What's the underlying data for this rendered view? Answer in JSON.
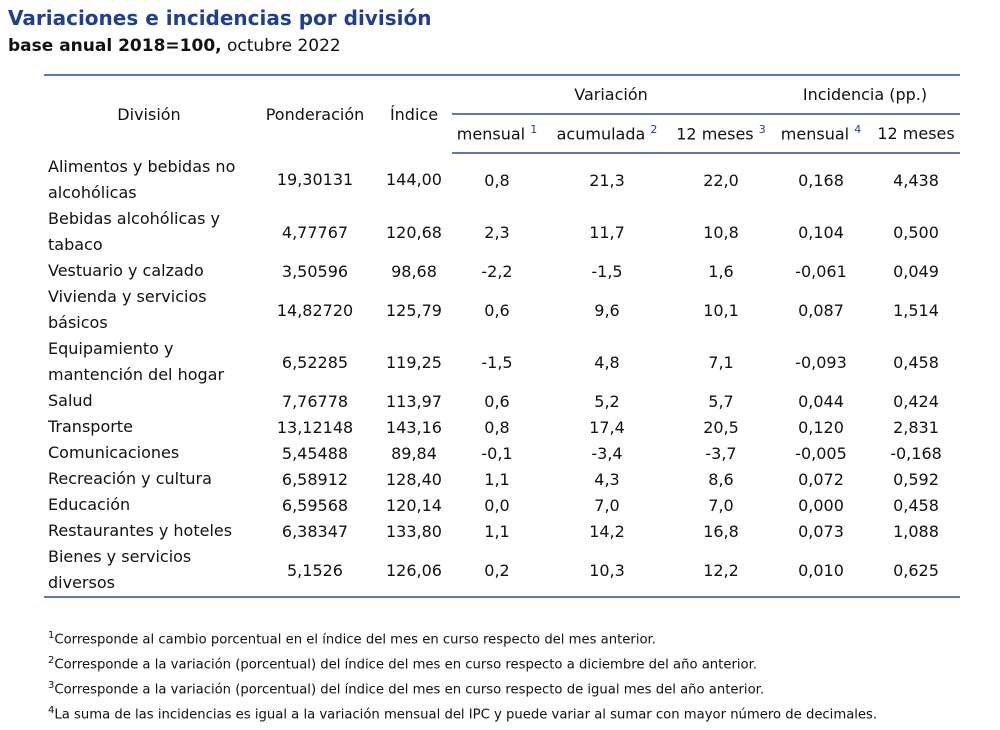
{
  "title": "Variaciones e incidencias por división",
  "subtitle": {
    "bold": "base anual 2018=100,",
    "normal": "octubre 2022"
  },
  "headers": {
    "division": "División",
    "ponderacion": "Ponderación",
    "indice": "Índice",
    "variacion": "Variación",
    "incidencia": "Incidencia (pp.)",
    "var_mensual": "mensual",
    "var_mensual_sup": "1",
    "var_acumulada": "acumulada",
    "var_acumulada_sup": "2",
    "var_12meses": "12 meses",
    "var_12meses_sup": "3",
    "inc_mensual": "mensual",
    "inc_mensual_sup": "4",
    "inc_12meses": "12 meses"
  },
  "rows": [
    {
      "name": "Alimentos y bebidas no alcohólicas",
      "ponderacion": "19,30131",
      "indice": "144,00",
      "var_mensual": "0,8",
      "var_acumulada": "21,3",
      "var_12meses": "22,0",
      "inc_mensual": "0,168",
      "inc_12meses": "4,438"
    },
    {
      "name": "Bebidas alcohólicas y tabaco",
      "ponderacion": "4,77767",
      "indice": "120,68",
      "var_mensual": "2,3",
      "var_acumulada": "11,7",
      "var_12meses": "10,8",
      "inc_mensual": "0,104",
      "inc_12meses": "0,500"
    },
    {
      "name": "Vestuario y calzado",
      "ponderacion": "3,50596",
      "indice": "98,68",
      "var_mensual": "-2,2",
      "var_acumulada": "-1,5",
      "var_12meses": "1,6",
      "inc_mensual": "-0,061",
      "inc_12meses": "0,049"
    },
    {
      "name": "Vivienda y servicios básicos",
      "ponderacion": "14,82720",
      "indice": "125,79",
      "var_mensual": "0,6",
      "var_acumulada": "9,6",
      "var_12meses": "10,1",
      "inc_mensual": "0,087",
      "inc_12meses": "1,514"
    },
    {
      "name": "Equipamiento y mantención del hogar",
      "ponderacion": "6,52285",
      "indice": "119,25",
      "var_mensual": "-1,5",
      "var_acumulada": "4,8",
      "var_12meses": "7,1",
      "inc_mensual": "-0,093",
      "inc_12meses": "0,458"
    },
    {
      "name": "Salud",
      "ponderacion": "7,76778",
      "indice": "113,97",
      "var_mensual": "0,6",
      "var_acumulada": "5,2",
      "var_12meses": "5,7",
      "inc_mensual": "0,044",
      "inc_12meses": "0,424"
    },
    {
      "name": "Transporte",
      "ponderacion": "13,12148",
      "indice": "143,16",
      "var_mensual": "0,8",
      "var_acumulada": "17,4",
      "var_12meses": "20,5",
      "inc_mensual": "0,120",
      "inc_12meses": "2,831"
    },
    {
      "name": "Comunicaciones",
      "ponderacion": "5,45488",
      "indice": "89,84",
      "var_mensual": "-0,1",
      "var_acumulada": "-3,4",
      "var_12meses": "-3,7",
      "inc_mensual": "-0,005",
      "inc_12meses": "-0,168"
    },
    {
      "name": "Recreación y cultura",
      "ponderacion": "6,58912",
      "indice": "128,40",
      "var_mensual": "1,1",
      "var_acumulada": "4,3",
      "var_12meses": "8,6",
      "inc_mensual": "0,072",
      "inc_12meses": "0,592"
    },
    {
      "name": "Educación",
      "ponderacion": "6,59568",
      "indice": "120,14",
      "var_mensual": "0,0",
      "var_acumulada": "7,0",
      "var_12meses": "7,0",
      "inc_mensual": "0,000",
      "inc_12meses": "0,458"
    },
    {
      "name": "Restaurantes y hoteles",
      "ponderacion": "6,38347",
      "indice": "133,80",
      "var_mensual": "1,1",
      "var_acumulada": "14,2",
      "var_12meses": "16,8",
      "inc_mensual": "0,073",
      "inc_12meses": "1,088"
    },
    {
      "name": "Bienes y servicios diversos",
      "ponderacion": "5,1526",
      "indice": "126,06",
      "var_mensual": "0,2",
      "var_acumulada": "10,3",
      "var_12meses": "12,2",
      "inc_mensual": "0,010",
      "inc_12meses": "0,625"
    }
  ],
  "notes": [
    {
      "mark": "1",
      "text": "Corresponde al cambio porcentual en el índice del mes en curso respecto del mes anterior."
    },
    {
      "mark": "2",
      "text": "Corresponde a la variación (porcentual) del índice del mes en curso respecto a diciembre del año anterior."
    },
    {
      "mark": "3",
      "text": "Corresponde a la variación (porcentual) del índice del mes en curso respecto de igual mes del año anterior."
    },
    {
      "mark": "4",
      "text": "La suma de las incidencias es igual a la variación mensual del IPC y puede variar al sumar con mayor número de decimales."
    }
  ],
  "colors": {
    "title": "#1f3f8f",
    "rule": "#5b78b6"
  }
}
